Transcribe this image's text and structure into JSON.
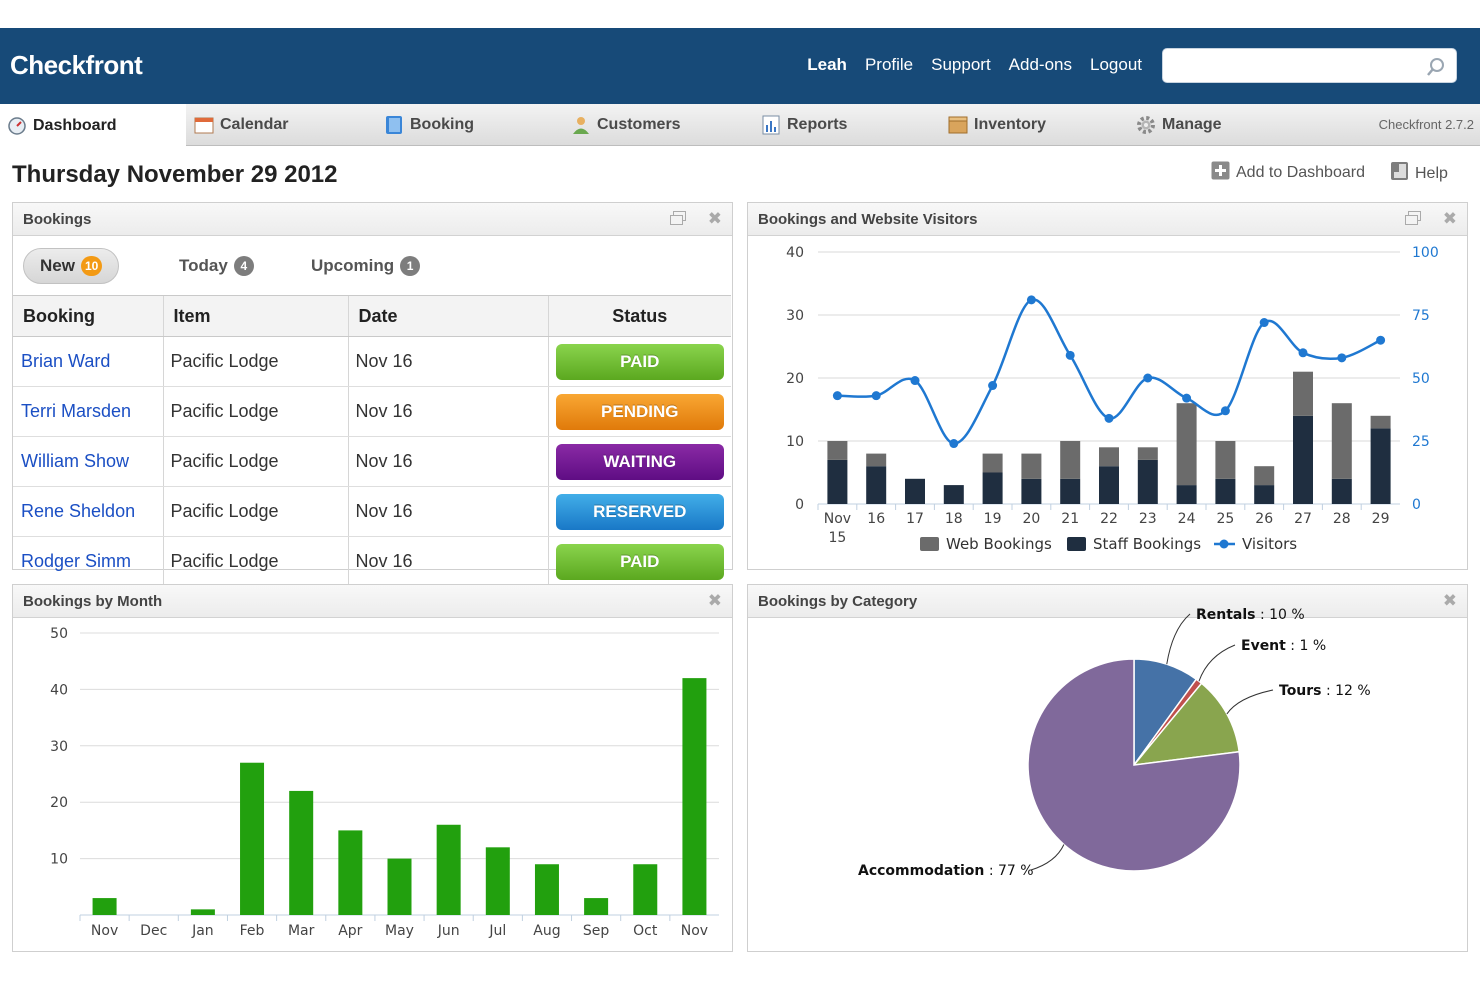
{
  "app": {
    "title": "Checkfront"
  },
  "header": {
    "user": "Leah",
    "links": [
      "Profile",
      "Support",
      "Add-ons",
      "Logout"
    ],
    "search_placeholder": ""
  },
  "nav": {
    "items": [
      {
        "label": "Dashboard",
        "icon": "dashboard-icon"
      },
      {
        "label": "Calendar",
        "icon": "calendar-icon"
      },
      {
        "label": "Booking",
        "icon": "booking-icon"
      },
      {
        "label": "Customers",
        "icon": "customers-icon"
      },
      {
        "label": "Reports",
        "icon": "reports-icon"
      },
      {
        "label": "Inventory",
        "icon": "inventory-icon"
      },
      {
        "label": "Manage",
        "icon": "gear-icon"
      }
    ],
    "version": "Checkfront 2.7.2"
  },
  "page": {
    "date": "Thursday November 29 2012",
    "add_to_dashboard": "Add to Dashboard",
    "help": "Help"
  },
  "bookings_panel": {
    "title": "Bookings",
    "tabs": [
      {
        "label": "New",
        "count": "10"
      },
      {
        "label": "Today",
        "count": "4"
      },
      {
        "label": "Upcoming",
        "count": "1"
      }
    ],
    "columns": [
      "Booking",
      "Item",
      "Date",
      "Status"
    ],
    "rows": [
      {
        "name": "Brian Ward",
        "item": "Pacific Lodge",
        "date": "Nov 16",
        "status": "PAID",
        "status_key": "paid"
      },
      {
        "name": "Terri Marsden",
        "item": "Pacific Lodge",
        "date": "Nov 16",
        "status": "PENDING",
        "status_key": "pending"
      },
      {
        "name": "William Show",
        "item": "Pacific Lodge",
        "date": "Nov 16",
        "status": "WAITING",
        "status_key": "waiting"
      },
      {
        "name": "Rene Sheldon",
        "item": "Pacific Lodge",
        "date": "Nov 16",
        "status": "RESERVED",
        "status_key": "reserved"
      },
      {
        "name": "Rodger Simm",
        "item": "Pacific Lodge",
        "date": "Nov 16",
        "status": "PAID",
        "status_key": "paid"
      }
    ]
  },
  "colors": {
    "header_bg": "#174a78",
    "web_bookings": "#6b6b6b",
    "staff_bookings": "#1f2e40",
    "visitors": "#1f78d1",
    "month_bars": "#22a00e"
  },
  "chart_data": [
    {
      "type": "bar",
      "title": "Bookings and Website Visitors",
      "categories": [
        "Nov 15",
        "16",
        "17",
        "18",
        "19",
        "20",
        "21",
        "22",
        "23",
        "24",
        "25",
        "26",
        "27",
        "28",
        "29"
      ],
      "series": [
        {
          "name": "Web Bookings",
          "values": [
            3,
            2,
            0,
            0,
            3,
            4,
            6,
            3,
            2,
            13,
            6,
            3,
            7,
            12,
            2
          ]
        },
        {
          "name": "Staff Bookings",
          "values": [
            7,
            6,
            4,
            3,
            5,
            4,
            4,
            6,
            7,
            3,
            4,
            3,
            14,
            4,
            12
          ]
        },
        {
          "name": "Visitors",
          "values": [
            43,
            43,
            49,
            24,
            47,
            81,
            59,
            34,
            50,
            42,
            37,
            72,
            60,
            58,
            65
          ]
        }
      ],
      "ylim": [
        0,
        40
      ],
      "y_ticks": [
        0,
        10,
        20,
        30,
        40
      ],
      "y2lim": [
        0,
        100
      ],
      "y2_ticks": [
        0,
        25,
        50,
        75,
        100
      ],
      "legend": "bottom",
      "grid": true
    },
    {
      "type": "bar",
      "title": "Bookings by Month",
      "categories": [
        "Nov",
        "Dec",
        "Jan",
        "Feb",
        "Mar",
        "Apr",
        "May",
        "Jun",
        "Jul",
        "Aug",
        "Sep",
        "Oct",
        "Nov"
      ],
      "values": [
        3,
        0,
        1,
        27,
        22,
        15,
        10,
        16,
        12,
        9,
        3,
        9,
        42
      ],
      "ylim": [
        0,
        50
      ],
      "y_ticks": [
        10,
        20,
        30,
        40,
        50
      ],
      "grid": true
    },
    {
      "type": "pie",
      "title": "Bookings by Category",
      "slices": [
        {
          "label": "Rentals",
          "value": 10,
          "color": "#4572a7"
        },
        {
          "label": "Event",
          "value": 1,
          "color": "#c0504d"
        },
        {
          "label": "Tours",
          "value": 12,
          "color": "#89a54e"
        },
        {
          "label": "Accommodation",
          "value": 77,
          "color": "#80699b"
        }
      ],
      "unit": "%"
    }
  ]
}
